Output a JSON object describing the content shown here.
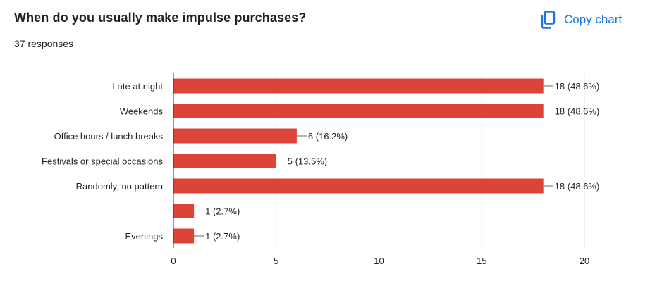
{
  "header": {
    "title": "When do you usually make impulse purchases?",
    "responses": "37 responses",
    "copy_label": "Copy chart"
  },
  "colors": {
    "bar": "#db4437",
    "accent": "#1a73e8",
    "grid": "#e6e6e6",
    "axis": "#333333"
  },
  "icons": {
    "copy": "copy-icon"
  },
  "chart_data": {
    "type": "bar",
    "orientation": "horizontal",
    "categories": [
      "Late at night",
      "Weekends",
      "Office hours / lunch breaks",
      "Festivals or special occasions",
      "Randomly, no pattern",
      "",
      "Evenings"
    ],
    "values": [
      18,
      18,
      6,
      5,
      18,
      1,
      1
    ],
    "data_labels": [
      "18 (48.6%)",
      "18 (48.6%)",
      "6 (16.2%)",
      "5 (13.5%)",
      "18 (48.6%)",
      "1 (2.7%)",
      "1 (2.7%)"
    ],
    "xlim": [
      0,
      20
    ],
    "xticks": [
      "0",
      "5",
      "10",
      "15",
      "20"
    ],
    "xtick_values": [
      0,
      5,
      10,
      15,
      20
    ],
    "grid": true,
    "xlabel": "",
    "ylabel": ""
  }
}
